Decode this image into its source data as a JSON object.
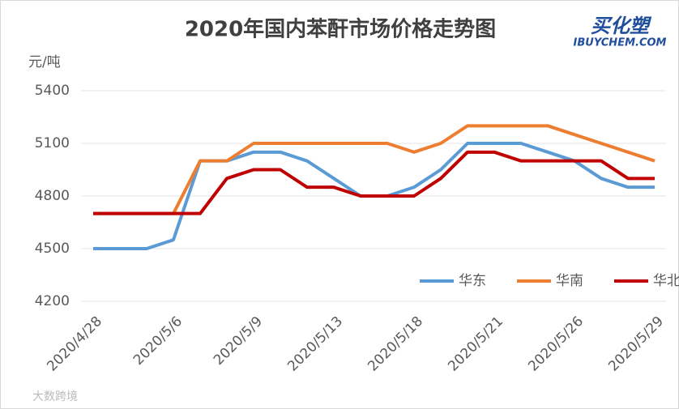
{
  "chart_data": {
    "type": "line",
    "title": "2020年国内苯酐市场价格走势图",
    "y_label": "元/吨",
    "logo": {
      "main": "买化塑",
      "sub": "IBUYCHEM.COM"
    },
    "watermark": "大数跨境",
    "categories": [
      "2020/4/28",
      null,
      null,
      "2020/5/6",
      null,
      null,
      "2020/5/9",
      null,
      null,
      "2020/5/13",
      null,
      null,
      "2020/5/18",
      null,
      null,
      "2020/5/21",
      null,
      null,
      "2020/5/26",
      null,
      null,
      "2020/5/29"
    ],
    "series": [
      {
        "name": "华东",
        "color": "#5b9bd5",
        "values": [
          4500,
          4500,
          4500,
          4550,
          5000,
          5000,
          5050,
          5050,
          5000,
          4900,
          4800,
          4800,
          4850,
          4950,
          5100,
          5100,
          5100,
          5050,
          5000,
          4900,
          4850,
          4850
        ]
      },
      {
        "name": "华南",
        "color": "#ed7d31",
        "values": [
          4700,
          4700,
          4700,
          4700,
          5000,
          5000,
          5100,
          5100,
          5100,
          5100,
          5100,
          5100,
          5050,
          5100,
          5200,
          5200,
          5200,
          5200,
          5150,
          5100,
          5050,
          5000
        ]
      },
      {
        "name": "华北",
        "color": "#c00000",
        "values": [
          4700,
          4700,
          4700,
          4700,
          4700,
          4900,
          4950,
          4950,
          4850,
          4850,
          4800,
          4800,
          4800,
          4900,
          5050,
          5050,
          5000,
          5000,
          5000,
          5000,
          4900,
          4900
        ]
      }
    ],
    "ylim": [
      4200,
      5400
    ],
    "yticks": [
      4200,
      4500,
      4800,
      5100,
      5400
    ],
    "grid": true,
    "legend": "bottom-right"
  }
}
